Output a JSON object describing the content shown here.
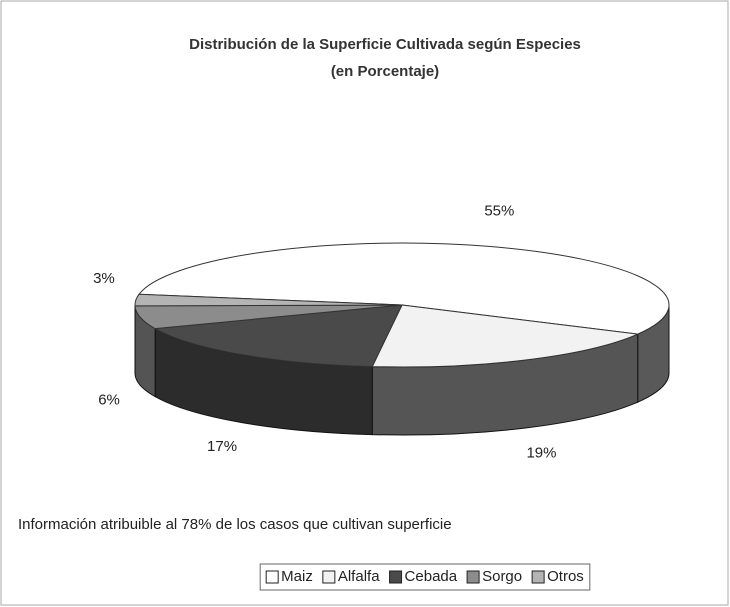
{
  "chart_data": {
    "type": "pie3d",
    "title": [
      "Distribución de la Superficie Cultivada según Especies",
      "(en Porcentaje)"
    ],
    "categories": [
      "Maiz",
      "Alfalfa",
      "Cebada",
      "Sorgo",
      "Otros"
    ],
    "values": [
      55,
      19,
      17,
      6,
      3
    ],
    "value_labels": [
      "55%",
      "19%",
      "17%",
      "6%",
      "3%"
    ],
    "colors": [
      "#ffffff",
      "#f2f2f2",
      "#4a4a4a",
      "#8c8c8c",
      "#b4b4b4"
    ],
    "annotation": "Información atribuible al 78% de los casos que cultivan superficie",
    "legend": "bottom"
  }
}
